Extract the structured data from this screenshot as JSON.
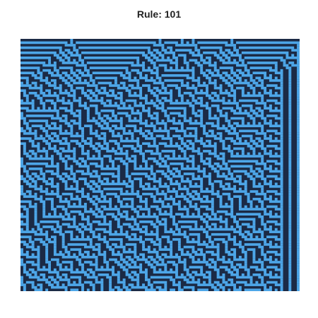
{
  "title": "Rule: 101",
  "automaton": {
    "rule": 101,
    "width": 101,
    "generations": 100,
    "initial_seed": "random-left-zone-and-center-cell",
    "colors": {
      "on": "#4da6e8",
      "off": "#1b2a45",
      "background": "#ffffff"
    }
  }
}
